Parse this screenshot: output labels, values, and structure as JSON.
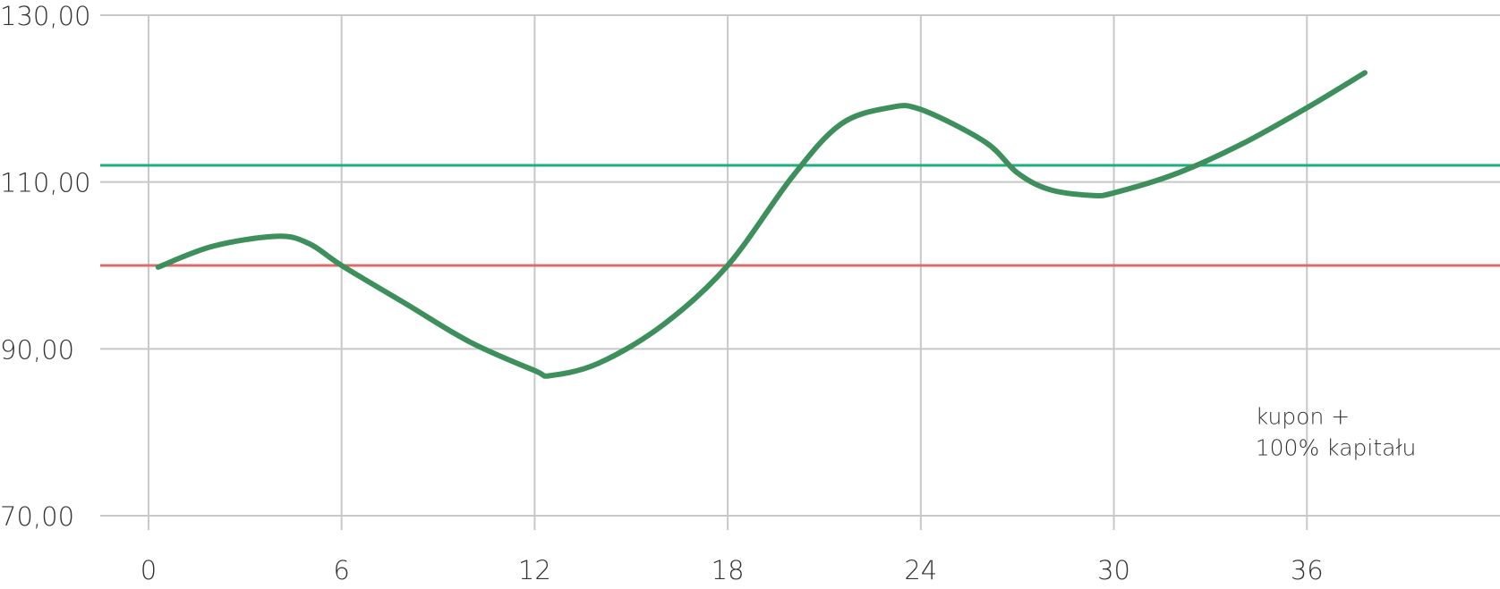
{
  "chart_data": {
    "type": "line",
    "x": [
      0.3,
      2,
      4,
      5,
      6,
      8,
      10,
      12,
      12.5,
      14,
      16,
      18,
      20,
      21.5,
      23,
      24,
      26,
      27,
      28,
      29.3,
      30,
      32,
      34,
      36,
      37.8
    ],
    "series": [
      {
        "color": "#3d8f5c",
        "values": [
          99.8,
          102.3,
          103.5,
          102.6,
          100,
          95.4,
          90.8,
          87.4,
          86.8,
          88.3,
          92.9,
          100,
          110.6,
          116.9,
          118.9,
          118.7,
          114.8,
          111.1,
          109.1,
          108.4,
          108.7,
          111.1,
          114.6,
          118.9,
          123.1
        ]
      }
    ],
    "reference_lines": [
      {
        "value": 112,
        "color": "#1fae7d"
      },
      {
        "value": 100,
        "color": "#e06a6a"
      }
    ],
    "xlim": [
      -1.5,
      42
    ],
    "xticks": [
      0,
      6,
      12,
      18,
      24,
      30,
      36
    ],
    "ylim": [
      70,
      130
    ],
    "yticks": [
      {
        "value": 70,
        "label": "70,00"
      },
      {
        "value": 90,
        "label": "90,00"
      },
      {
        "value": 110,
        "label": "110,00"
      },
      {
        "value": 130,
        "label": "130,00"
      }
    ],
    "grid": true,
    "annotation": {
      "x": 34.4,
      "y": 81,
      "lines": [
        "kupon +",
        "100% kapitału"
      ]
    }
  }
}
